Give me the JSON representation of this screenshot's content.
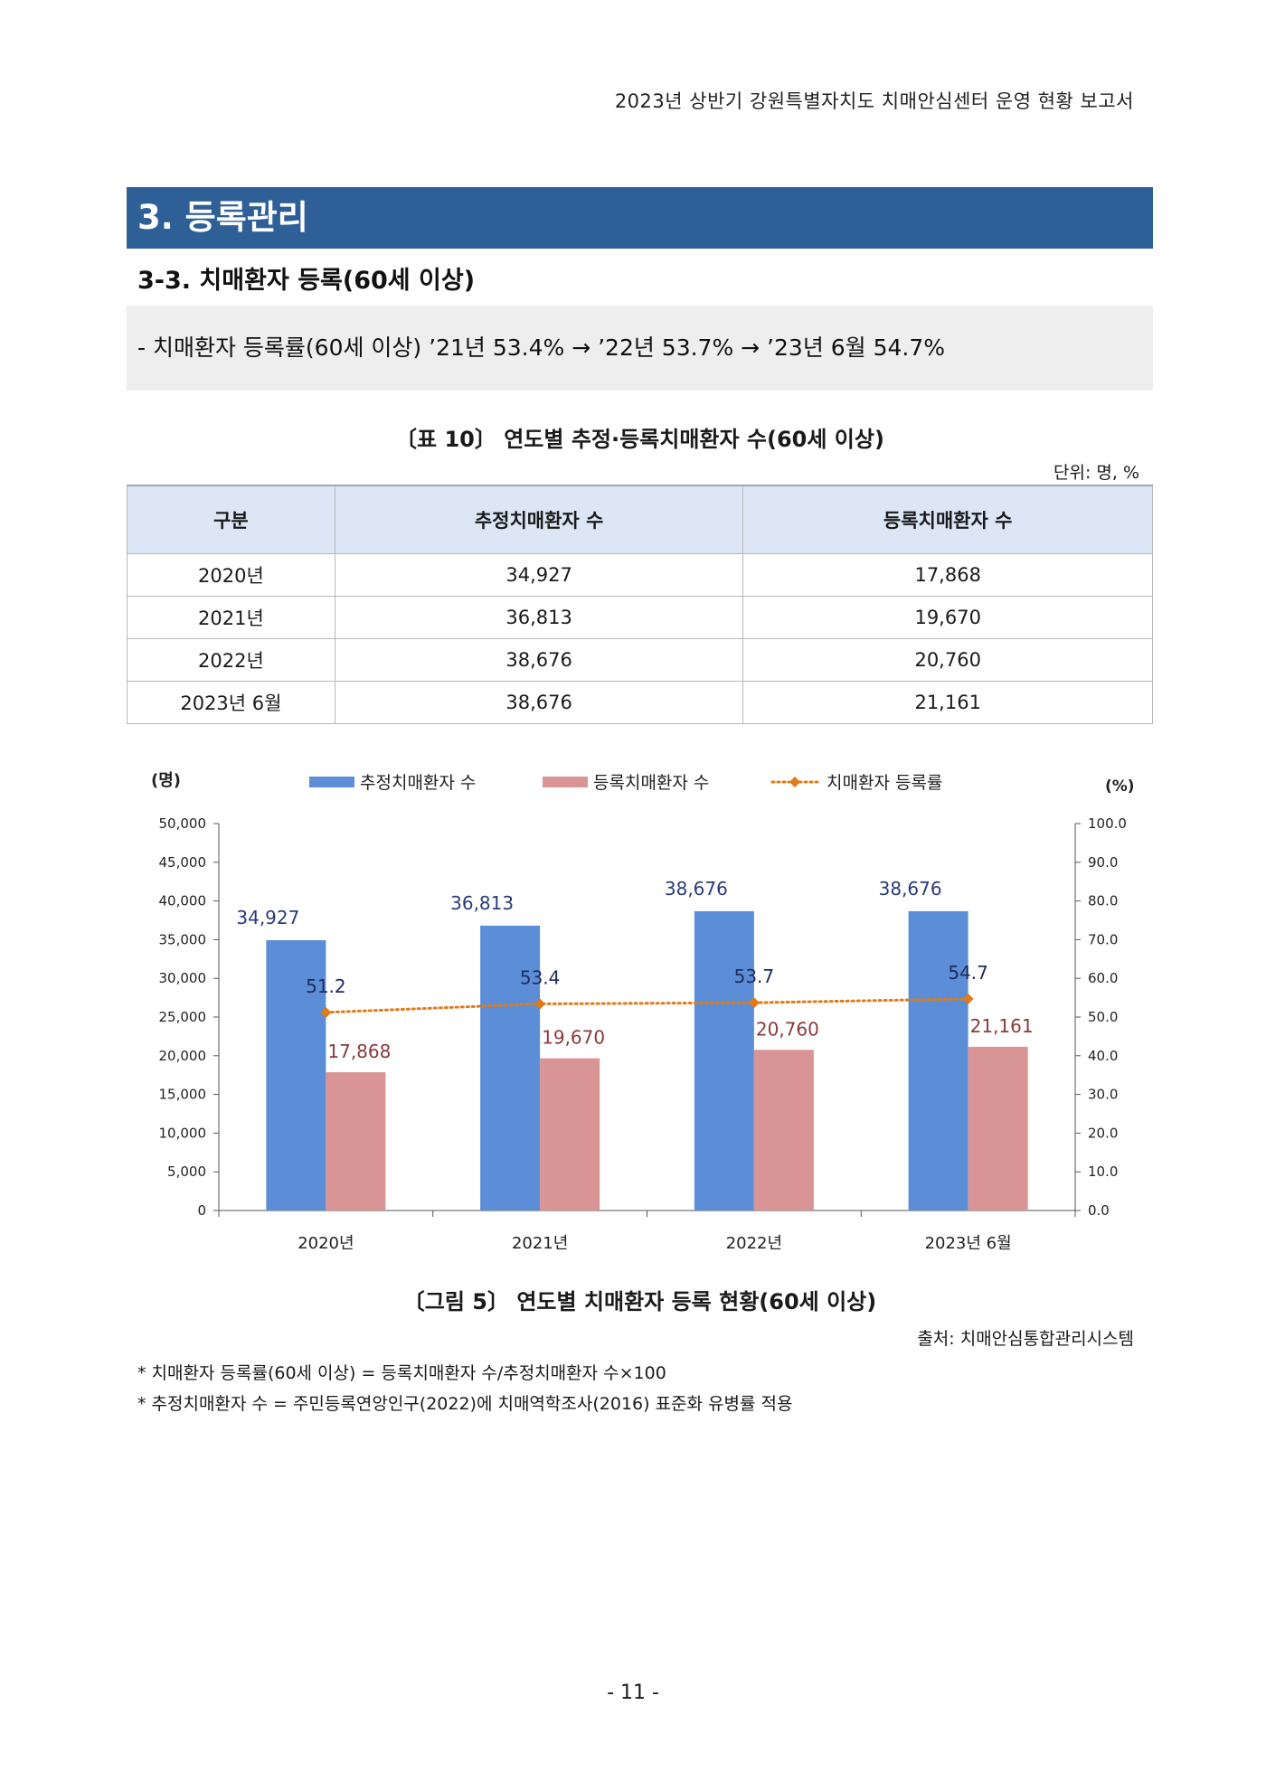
{
  "running_header": "2023년 상반기 강원특별자치도 치매안심센터 운영 현황 보고서",
  "section_title": "3. 등록관리",
  "subsection_title": "3-3. 치매환자 등록(60세 이상)",
  "summary": "- 치매환자 등록률(60세 이상) ’21년 53.4% → ’22년 53.7% → ’23년 6월 54.7%",
  "table": {
    "caption": "〔표 10〕 연도별 추정·등록치매환자 수(60세 이상)",
    "unit": "단위: 명, %",
    "headers": [
      "구분",
      "추정치매환자 수",
      "등록치매환자 수"
    ],
    "rows": [
      [
        "2020년",
        "34,927",
        "17,868"
      ],
      [
        "2021년",
        "36,813",
        "19,670"
      ],
      [
        "2022년",
        "38,676",
        "20,760"
      ],
      [
        "2023년 6월",
        "38,676",
        "21,161"
      ]
    ]
  },
  "colors": {
    "estimated": "#5b8ed6",
    "registered": "#d99595",
    "rate": "#e07b18",
    "section_bar": "#2e5f97",
    "header_fill": "#dce6f5"
  },
  "chart_data": {
    "type": "bar",
    "categories": [
      "2020년",
      "2021년",
      "2022년",
      "2023년 6월"
    ],
    "series": [
      {
        "name": "추정치매환자 수",
        "type": "bar",
        "axis": "left",
        "values": [
          34927,
          36813,
          38676,
          38676
        ],
        "labels": [
          "34,927",
          "36,813",
          "38,676",
          "38,676"
        ]
      },
      {
        "name": "등록치매환자 수",
        "type": "bar",
        "axis": "left",
        "values": [
          17868,
          19670,
          20760,
          21161
        ],
        "labels": [
          "17,868",
          "19,670",
          "20,760",
          "21,161"
        ]
      },
      {
        "name": "치매환자 등록률",
        "type": "line",
        "axis": "right",
        "values": [
          51.2,
          53.4,
          53.7,
          54.7
        ],
        "labels": [
          "51.2",
          "53.4",
          "53.7",
          "54.7"
        ]
      }
    ],
    "ylabel": "(명)",
    "y2label": "(%)",
    "ylim": [
      0,
      50000
    ],
    "y2lim": [
      0,
      100
    ],
    "yticks": [
      "0",
      "5,000",
      "10,000",
      "15,000",
      "20,000",
      "25,000",
      "30,000",
      "35,000",
      "40,000",
      "45,000",
      "50,000"
    ],
    "y2ticks": [
      "0.0",
      "10.0",
      "20.0",
      "30.0",
      "40.0",
      "50.0",
      "60.0",
      "70.0",
      "80.0",
      "90.0",
      "100.0"
    ],
    "legend": "top",
    "grid": false
  },
  "figure_caption": "〔그림 5〕 연도별 치매환자 등록 현황(60세 이상)",
  "source": "출처: 치매안심통합관리시스템",
  "notes": [
    "* 치매환자 등록률(60세 이상) = 등록치매환자 수/추정치매환자 수×100",
    "* 추정치매환자 수 = 주민등록연앙인구(2022)에 치매역학조사(2016) 표준화 유병률 적용"
  ],
  "page_number": "- 11 -"
}
